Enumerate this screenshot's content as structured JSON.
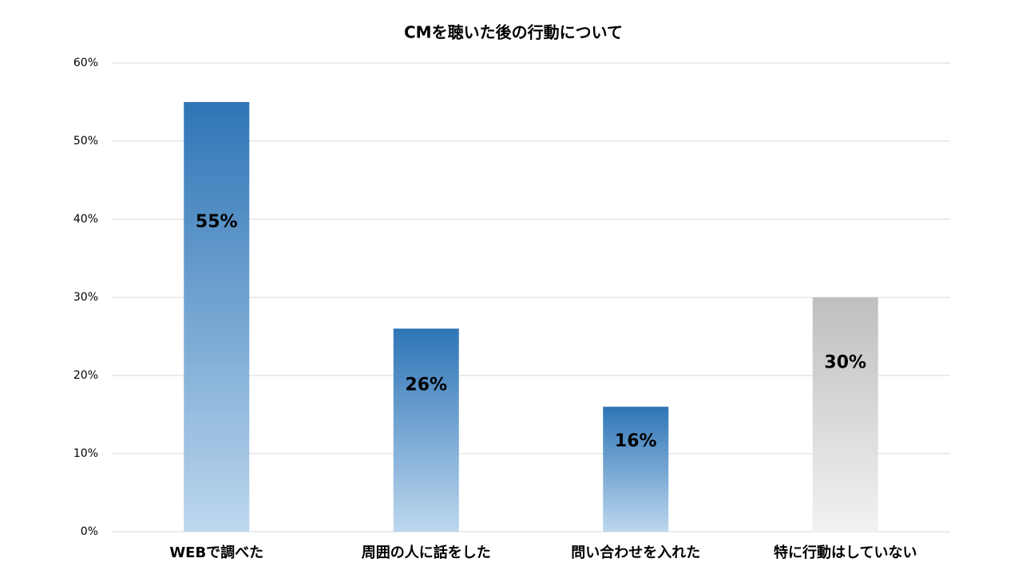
{
  "chart_data": {
    "type": "bar",
    "title": "CMを聴いた後の行動について",
    "categories": [
      "WEBで調べた",
      "周囲の人に話をした",
      "問い合わせを入れた",
      "特に行動はしていない"
    ],
    "values": [
      55,
      26,
      16,
      30
    ],
    "value_labels": [
      "55%",
      "26%",
      "16%",
      "30%"
    ],
    "colors": [
      "#2e75b6",
      "#2e75b6",
      "#2e75b6",
      "#bfbfbf"
    ],
    "fade_colors": [
      "#bdd7ee",
      "#bdd7ee",
      "#bdd7ee",
      "#f2f2f2"
    ],
    "ylim": [
      0,
      60
    ],
    "yticks": [
      {
        "value": 0,
        "label": "0%"
      },
      {
        "value": 10,
        "label": "10%"
      },
      {
        "value": 20,
        "label": "20%"
      },
      {
        "value": 30,
        "label": "30%"
      },
      {
        "value": 40,
        "label": "40%"
      },
      {
        "value": 50,
        "label": "50%"
      },
      {
        "value": 60,
        "label": "60%"
      }
    ],
    "grid": true
  }
}
